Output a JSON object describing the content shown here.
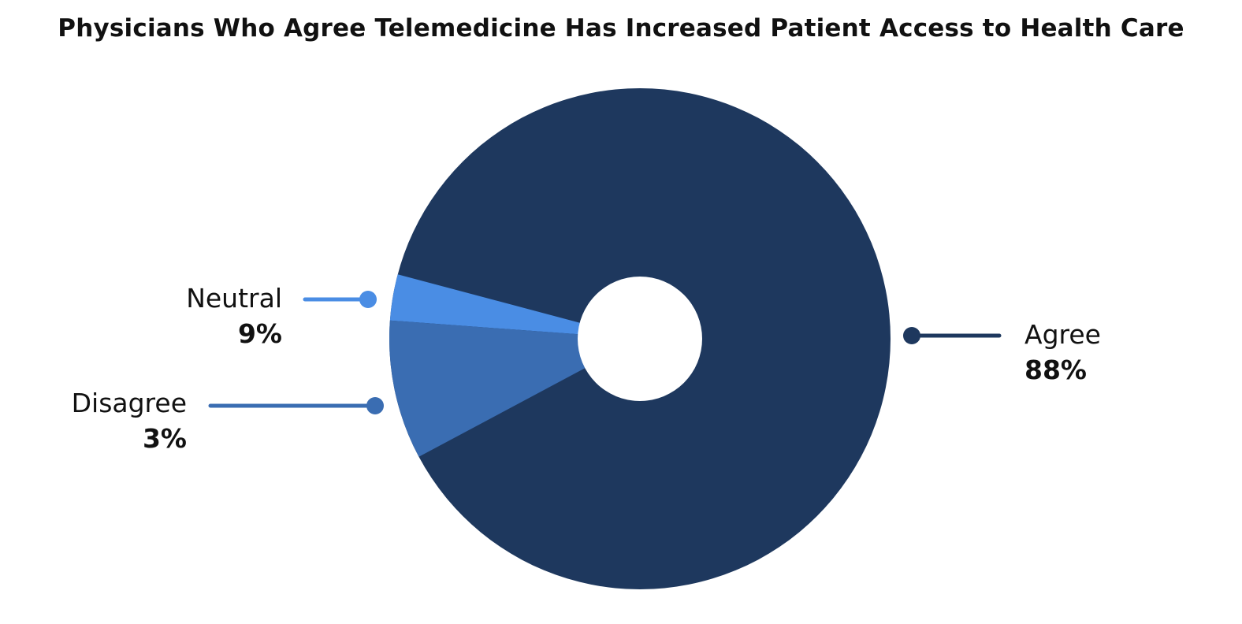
{
  "chart_data": {
    "type": "pie",
    "title": "Physicians Who Agree Telemedicine Has Increased Patient Access to Health Care",
    "slices": [
      {
        "label": "Agree",
        "value": 88,
        "value_label": "88%",
        "color": "#1e385e"
      },
      {
        "label": "Neutral",
        "value": 9,
        "value_label": "9%",
        "color": "#4a8de4"
      },
      {
        "label": "Disagree",
        "value": 3,
        "value_label": "3%",
        "color": "#3a6db2"
      }
    ],
    "legend": "callouts"
  }
}
